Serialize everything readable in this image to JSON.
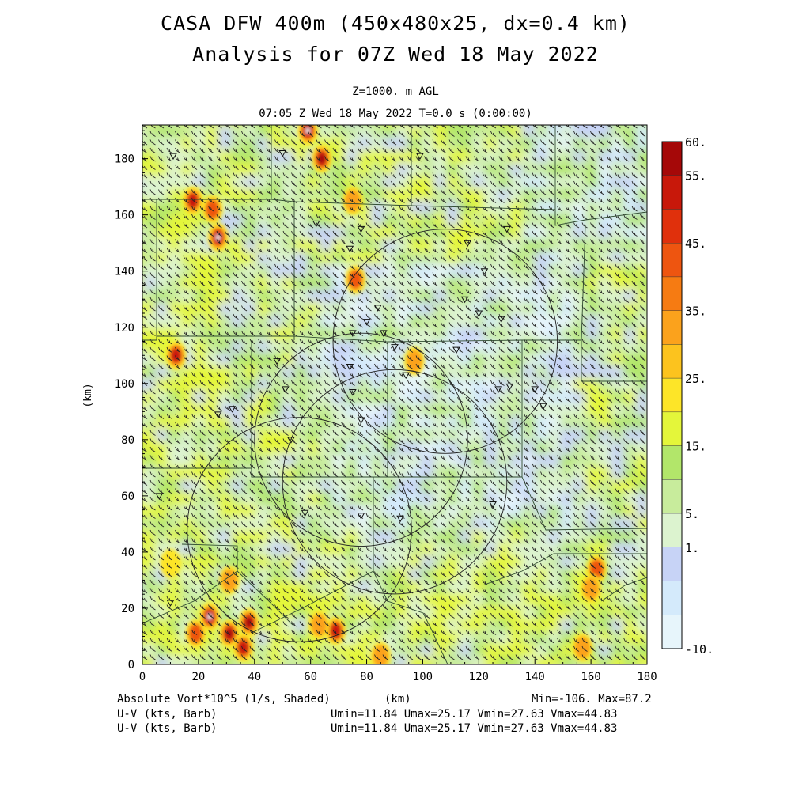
{
  "header": {
    "title_line1": "CASA DFW 400m (450x480x25, dx=0.4 km)",
    "title_line2": "Analysis for 07Z Wed 18 May 2022",
    "level": "Z=1000. m AGL",
    "time": "07:05 Z Wed 18 May 2022    T=0.0 s (0:00:00)"
  },
  "axes": {
    "x_ticks": [
      "0",
      "20",
      "40",
      "60",
      "80",
      "100",
      "120",
      "140",
      "160",
      "180"
    ],
    "y_ticks": [
      "0",
      "20",
      "40",
      "60",
      "80",
      "100",
      "120",
      "140",
      "160",
      "180"
    ],
    "xlabel": "(km)",
    "ylabel": "(km)",
    "xlim": [
      0,
      180
    ],
    "ylim": [
      0,
      192
    ]
  },
  "colorbar": {
    "labels": [
      "60.",
      "55.",
      "45.",
      "35.",
      "25.",
      "15.",
      "5.",
      "1.",
      "-10."
    ],
    "colors": [
      "#e7f5fb",
      "#d4eafb",
      "#c7d3f6",
      "#dcf3cf",
      "#c8ec9c",
      "#b2e66a",
      "#e4f63a",
      "#fde528",
      "#fcc31e",
      "#fba21c",
      "#f67b12",
      "#ee5510",
      "#e0300c",
      "#c8180a",
      "#a50808"
    ]
  },
  "footer": {
    "field_label": "Absolute Vort*10^5 (1/s, Shaded)",
    "units_label": "(km)",
    "minmax": "Min=-106. Max=87.2",
    "barb_label_1": "U-V (kts, Barb)",
    "barb_label_2": "U-V (kts, Barb)",
    "wind_stats_1": "Umin=11.84 Umax=25.17 Vmin=27.63 Vmax=44.83",
    "wind_stats_2": "Umin=11.84 Umax=25.17 Vmin=27.63 Vmax=44.83"
  },
  "map_features": {
    "radar_range_rings": 4,
    "county_boundaries": true,
    "wind_barbs": true,
    "station_markers": "triangle"
  },
  "chart_data": {
    "type": "heatmap",
    "title": "CASA DFW 400m (450x480x25, dx=0.4 km)",
    "subtitle": "Analysis for 07Z Wed 18 May 2022",
    "field": "Absolute Vort*10^5 (1/s, Shaded)",
    "min": -106,
    "max": 87.2,
    "wind": {
      "units": "kts",
      "umin": 11.84,
      "umax": 25.17,
      "vmin": 27.63,
      "vmax": 44.83
    },
    "xlabel": "(km)",
    "ylabel": "(km)",
    "xlim": [
      0,
      180
    ],
    "ylim": [
      0,
      192
    ],
    "radar_rings": [
      {
        "cx": 108,
        "cy": 115,
        "r": 40
      },
      {
        "cx": 78,
        "cy": 80,
        "r": 38
      },
      {
        "cx": 90,
        "cy": 65,
        "r": 40
      },
      {
        "cx": 56,
        "cy": 48,
        "r": 40
      }
    ],
    "hotspots": [
      {
        "x": 59,
        "y": 190,
        "v": 85
      },
      {
        "x": 64,
        "y": 180,
        "v": 80
      },
      {
        "x": 18,
        "y": 165,
        "v": 60
      },
      {
        "x": 27,
        "y": 152,
        "v": 87
      },
      {
        "x": 12,
        "y": 110,
        "v": 65
      },
      {
        "x": 25,
        "y": 162,
        "v": 40
      },
      {
        "x": 76,
        "y": 137,
        "v": 40
      },
      {
        "x": 75,
        "y": 165,
        "v": 35
      },
      {
        "x": 97,
        "y": 108,
        "v": 30
      },
      {
        "x": 24,
        "y": 17,
        "v": 85
      },
      {
        "x": 38,
        "y": 15,
        "v": 80
      },
      {
        "x": 31,
        "y": 11,
        "v": 70
      },
      {
        "x": 36,
        "y": 6,
        "v": 55
      },
      {
        "x": 69,
        "y": 12,
        "v": 55
      },
      {
        "x": 19,
        "y": 11,
        "v": 40
      },
      {
        "x": 162,
        "y": 34,
        "v": 45
      },
      {
        "x": 160,
        "y": 27,
        "v": 30
      },
      {
        "x": 157,
        "y": 6,
        "v": 30
      },
      {
        "x": 85,
        "y": 3,
        "v": 30
      },
      {
        "x": 31,
        "y": 30,
        "v": 30
      },
      {
        "x": 10,
        "y": 36,
        "v": 25
      },
      {
        "x": 63,
        "y": 14,
        "v": 30
      }
    ],
    "stations": [
      [
        11,
        181
      ],
      [
        50,
        182
      ],
      [
        99,
        181
      ],
      [
        62,
        157
      ],
      [
        78,
        155
      ],
      [
        74,
        148
      ],
      [
        116,
        150
      ],
      [
        130,
        155
      ],
      [
        122,
        140
      ],
      [
        115,
        130
      ],
      [
        120,
        125
      ],
      [
        128,
        123
      ],
      [
        84,
        127
      ],
      [
        80,
        122
      ],
      [
        86,
        118
      ],
      [
        75,
        118
      ],
      [
        48,
        108
      ],
      [
        74,
        106
      ],
      [
        90,
        113
      ],
      [
        112,
        112
      ],
      [
        94,
        103
      ],
      [
        75,
        97
      ],
      [
        32,
        91
      ],
      [
        51,
        98
      ],
      [
        27,
        89
      ],
      [
        53,
        80
      ],
      [
        78,
        87
      ],
      [
        127,
        98
      ],
      [
        131,
        99
      ],
      [
        140,
        98
      ],
      [
        143,
        92
      ],
      [
        6,
        60
      ],
      [
        58,
        54
      ],
      [
        78,
        53
      ],
      [
        92,
        52
      ],
      [
        10,
        22
      ],
      [
        125,
        57
      ]
    ]
  }
}
